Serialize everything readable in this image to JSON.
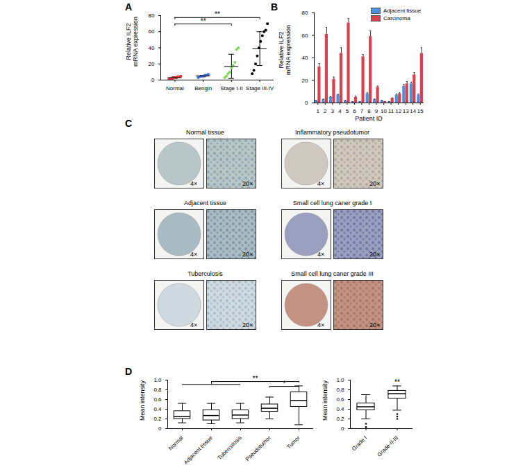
{
  "chart_data": [
    {
      "type": "scatter",
      "title": "A",
      "categories": [
        "Normal",
        "Bengin",
        "Stage I-II",
        "Stage III-IV"
      ],
      "values": [
        [
          1,
          2,
          2,
          3,
          3,
          4,
          4,
          5
        ],
        [
          3,
          4,
          5,
          5,
          6,
          6,
          7
        ],
        [
          3,
          5,
          8,
          10,
          15,
          18,
          22,
          38,
          40
        ],
        [
          8,
          12,
          20,
          30,
          40,
          48,
          55,
          60,
          62,
          70
        ]
      ],
      "means": [
        3,
        5,
        17,
        39
      ],
      "errors": [
        1,
        1,
        15,
        21
      ],
      "colors": [
        "#e8382f",
        "#3a6fd8",
        "#7ed957",
        "#000000"
      ],
      "y_label": "Relative ILF2 mRNA expression",
      "ylim": [
        0,
        80
      ],
      "yticks": [
        0,
        20,
        40,
        60,
        80
      ],
      "annotations": [
        {
          "text": "**",
          "from": [
            "Normal"
          ],
          "to": "Stage III-IV"
        },
        {
          "text": "**",
          "from": [
            "Normal"
          ],
          "to": "Stage I-II"
        }
      ]
    },
    {
      "type": "bar",
      "title": "B",
      "categories": [
        1,
        2,
        3,
        4,
        5,
        6,
        7,
        8,
        9,
        10,
        11,
        12,
        13,
        14,
        15
      ],
      "x_label": "Patient ID",
      "y_label": "Relative ILF2 mRNA expression",
      "series": [
        {
          "name": "Adjacent tissue",
          "color": "#4f8fdc",
          "values": [
            2,
            3,
            5,
            7,
            2,
            1,
            1,
            8,
            3,
            2,
            1,
            7,
            15,
            17,
            7
          ],
          "errors": [
            0.3,
            0.4,
            0.5,
            0.6,
            0.3,
            0.2,
            0.2,
            1,
            0.4,
            0.3,
            0.2,
            0.8,
            1.5,
            1.5,
            0.8
          ]
        },
        {
          "name": "Carcinoma",
          "color": "#d9414f",
          "values": [
            32,
            61,
            21,
            44,
            71,
            5,
            41,
            59,
            14,
            1,
            4,
            8,
            17,
            25,
            44
          ],
          "errors": [
            3,
            6,
            2,
            5,
            4,
            1,
            2,
            5,
            1,
            0.3,
            0.5,
            1,
            2,
            2,
            5
          ]
        }
      ],
      "legend": "top-right",
      "ylim": [
        0,
        80
      ],
      "yticks": [
        0,
        20,
        40,
        60,
        80
      ]
    },
    {
      "type": "image_grid",
      "title": "C",
      "panels": [
        {
          "title": "Normal tissue",
          "images": [
            "4×",
            "20×"
          ]
        },
        {
          "title": "Inflammatory pseudotumor",
          "images": [
            "4×",
            "20×"
          ]
        },
        {
          "title": "Adjacent tissue",
          "images": [
            "4×",
            "20×"
          ]
        },
        {
          "title": "Small cell lung caner grade I",
          "images": [
            "4×",
            "20×"
          ]
        },
        {
          "title": "Tuberculosis",
          "images": [
            "4×",
            "20×"
          ]
        },
        {
          "title": "Small cell lung caner grade III",
          "images": [
            "4×",
            "20×"
          ]
        }
      ]
    },
    {
      "type": "box",
      "title": "D",
      "categories": [
        "Normal",
        "Adjacent tissue",
        "Tuberculosis",
        "Pseudotumor",
        "Tumor"
      ],
      "min": [
        0.12,
        0.1,
        0.12,
        0.2,
        0.08
      ],
      "q1": [
        0.2,
        0.17,
        0.2,
        0.35,
        0.45
      ],
      "median": [
        0.25,
        0.27,
        0.28,
        0.42,
        0.58
      ],
      "q3": [
        0.36,
        0.38,
        0.38,
        0.5,
        0.75
      ],
      "max": [
        0.52,
        0.52,
        0.52,
        0.65,
        0.88
      ],
      "outliers": [
        [],
        [],
        [],
        [],
        []
      ],
      "y_label": "Mean intensity",
      "ylim": [
        0,
        1
      ],
      "yticks": [
        0,
        0.2,
        0.4,
        0.6,
        0.8,
        {
          "value": 1,
          "label": "1.0"
        }
      ],
      "annotations": [
        {
          "text": "**",
          "from": [
            "Normal",
            "Adjacent tissue",
            "Tuberculosis"
          ],
          "to": "Tumor"
        },
        {
          "text": "*",
          "from": [
            "Pseudotumor"
          ],
          "to": "Tumor"
        }
      ]
    },
    {
      "type": "box",
      "categories": [
        "Grade I",
        "Grade-II-III"
      ],
      "min": [
        0.2,
        0.38
      ],
      "q1": [
        0.38,
        0.62
      ],
      "median": [
        0.45,
        0.72
      ],
      "q3": [
        0.52,
        0.78
      ],
      "max": [
        0.7,
        0.88
      ],
      "outliers": [
        [
          0.1,
          0.03
        ],
        [
          0.3,
          0.25,
          0.2
        ]
      ],
      "y_label": "Mean intensity",
      "ylim": [
        0,
        1
      ],
      "yticks": [
        0,
        0.2,
        0.4,
        0.6,
        0.8,
        {
          "value": 1,
          "label": "1.0"
        }
      ],
      "annotations": [
        {
          "text": "**",
          "over": "Grade-II-III"
        }
      ]
    }
  ]
}
